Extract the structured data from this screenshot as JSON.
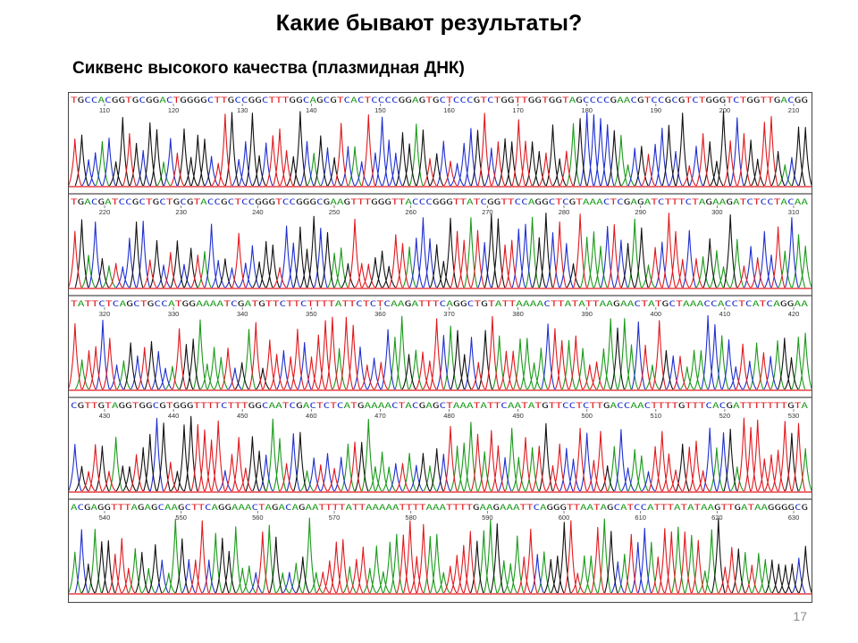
{
  "slide": {
    "title": "Какие бывают результаты?",
    "subtitle": "Сиквенс высокого качества (плазмидная ДНК)",
    "page_number": "17"
  },
  "base_colors": {
    "A": "#1a9a1a",
    "C": "#1f2fd0",
    "G": "#111111",
    "T": "#e0191e"
  },
  "rows": [
    {
      "sequence": "TGCCACGGTGCGGACTGGGGCTTGCCGGCTTTGGCAGCGTCACTCCCCGGAGTGCTCCCGTCTGGTTGGTGGTAGCCCCGAACGTCCGCGTCTGGGTCTGGTTGACGG",
      "ticks": [
        "110",
        "120",
        "130",
        "140",
        "150",
        "160",
        "170",
        "180",
        "190",
        "200",
        "210"
      ]
    },
    {
      "sequence": "TGACGATCCGCTGCTGCGTACCGCTCCGGGTCCGGGCGAAGTTTGGGTTACCCGGGTTATCGGTTCCAGGCTCGTAAACTCGAGATCTTTCTAGAAGATCTCCTACAA",
      "ticks": [
        "220",
        "230",
        "240",
        "250",
        "260",
        "270",
        "280",
        "290",
        "300",
        "310"
      ]
    },
    {
      "sequence": "TATTCTCAGCTGCCATGGAAAATCGATGTTCTTCTTTTATTCTCTCAAGATTTCAGGCTGTATTAAAACTTATATTAAGAACTATGCTAAACCACCTCATCAGGAA",
      "ticks": [
        "320",
        "330",
        "340",
        "350",
        "360",
        "370",
        "380",
        "390",
        "400",
        "410",
        "420"
      ]
    },
    {
      "sequence": "CGTTGTAGGTGGCGTGGGTTTTCTTTGGCAATCGACTCTCATGAAAACTACGAGCTAAATATTCAATATGTTCCTCTTGACCAACTTTTGTTTCACGATTTTTTTGTA",
      "ticks": [
        "430",
        "440",
        "450",
        "460",
        "470",
        "480",
        "490",
        "500",
        "510",
        "520",
        "530"
      ]
    },
    {
      "sequence": "ACGAGGTTTAGAGCAAGCTTCAGGAAACTAGACAGAATTTTATTAAAAATTTTAAATTTTGAAGAAATTCAGGGTTAATAGCATCCATTTATATAAGTTGATAAGGGGCG",
      "ticks": [
        "540",
        "550",
        "560",
        "570",
        "580",
        "590",
        "600",
        "610",
        "620",
        "630"
      ]
    }
  ]
}
